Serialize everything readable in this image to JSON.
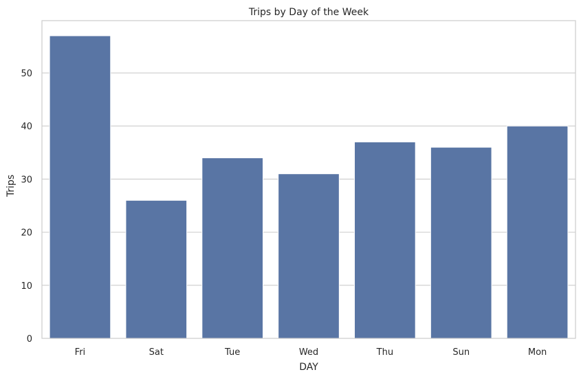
{
  "chart_data": {
    "type": "bar",
    "title": "Trips by Day of the Week",
    "xlabel": "DAY",
    "ylabel": "Trips",
    "categories": [
      "Fri",
      "Sat",
      "Tue",
      "Wed",
      "Thu",
      "Sun",
      "Mon"
    ],
    "values": [
      57,
      26,
      34,
      31,
      37,
      36,
      40
    ],
    "ylim": [
      0,
      59.85
    ],
    "yticks": [
      0,
      10,
      20,
      30,
      40,
      50
    ],
    "grid": "horizontal",
    "legend": "none",
    "bar_color": "#5975a4",
    "grid_color": "#cccccc",
    "frame_color": "#cccccc"
  }
}
